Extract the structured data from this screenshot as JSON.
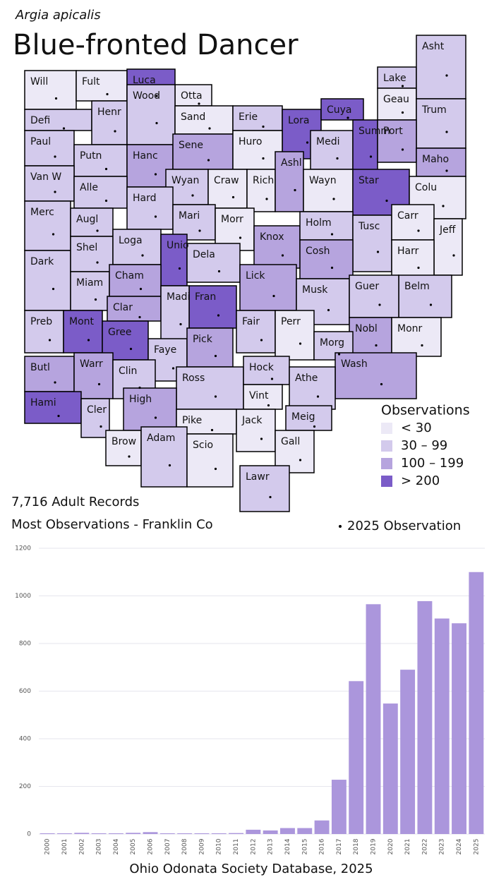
{
  "header": {
    "species": "Argia apicalis",
    "title": "Blue-fronted Dancer"
  },
  "summary": {
    "records": "7,716 Adult Records",
    "most": "Most Observations - Franklin Co",
    "dot_legend": "2025 Observation"
  },
  "map": {
    "legend": {
      "title": "Observations",
      "items": [
        {
          "label": "< 30",
          "color": "#ece9f6"
        },
        {
          "label": "30 – 99",
          "color": "#d3caec"
        },
        {
          "label": "100 – 199",
          "color": "#b6a4de"
        },
        {
          "label": "> 200",
          "color": "#7b5cc8"
        }
      ]
    },
    "counties": [
      {
        "name": "Will",
        "level": 0
      },
      {
        "name": "Fult",
        "level": 0
      },
      {
        "name": "Luca",
        "level": 3
      },
      {
        "name": "Otta",
        "level": 0
      },
      {
        "name": "Defi",
        "level": 1
      },
      {
        "name": "Henr",
        "level": 1
      },
      {
        "name": "Wood",
        "level": 1
      },
      {
        "name": "Sand",
        "level": 0
      },
      {
        "name": "Erie",
        "level": 1
      },
      {
        "name": "Lora",
        "level": 3
      },
      {
        "name": "Cuya",
        "level": 3
      },
      {
        "name": "Lake",
        "level": 1
      },
      {
        "name": "Geau",
        "level": 0
      },
      {
        "name": "Asht",
        "level": 1
      },
      {
        "name": "Trum",
        "level": 1
      },
      {
        "name": "Paul",
        "level": 1
      },
      {
        "name": "Putn",
        "level": 1
      },
      {
        "name": "Hanc",
        "level": 2
      },
      {
        "name": "Sene",
        "level": 2
      },
      {
        "name": "Huro",
        "level": 0
      },
      {
        "name": "Medi",
        "level": 1
      },
      {
        "name": "Summ",
        "level": 3
      },
      {
        "name": "Port",
        "level": 2
      },
      {
        "name": "Maho",
        "level": 2
      },
      {
        "name": "Van W",
        "level": 1
      },
      {
        "name": "Alle",
        "level": 1
      },
      {
        "name": "Wyan",
        "level": 1
      },
      {
        "name": "Craw",
        "level": 0
      },
      {
        "name": "Rich",
        "level": 0
      },
      {
        "name": "Ashl",
        "level": 2
      },
      {
        "name": "Wayn",
        "level": 0
      },
      {
        "name": "Star",
        "level": 3
      },
      {
        "name": "Colu",
        "level": 0
      },
      {
        "name": "Merc",
        "level": 1
      },
      {
        "name": "Augl",
        "level": 1
      },
      {
        "name": "Hard",
        "level": 1
      },
      {
        "name": "Mari",
        "level": 1
      },
      {
        "name": "Morr",
        "level": 0
      },
      {
        "name": "Knox",
        "level": 2
      },
      {
        "name": "Holm",
        "level": 1
      },
      {
        "name": "Tusc",
        "level": 1
      },
      {
        "name": "Carr",
        "level": 0
      },
      {
        "name": "Jeff",
        "level": 0
      },
      {
        "name": "Harr",
        "level": 0
      },
      {
        "name": "Dark",
        "level": 1
      },
      {
        "name": "Shel",
        "level": 1
      },
      {
        "name": "Loga",
        "level": 1
      },
      {
        "name": "Unio",
        "level": 3
      },
      {
        "name": "Dela",
        "level": 1
      },
      {
        "name": "Cosh",
        "level": 2
      },
      {
        "name": "Belm",
        "level": 1
      },
      {
        "name": "Miam",
        "level": 1
      },
      {
        "name": "Cham",
        "level": 2
      },
      {
        "name": "Lick",
        "level": 2
      },
      {
        "name": "Musk",
        "level": 1
      },
      {
        "name": "Guer",
        "level": 1
      },
      {
        "name": "Clar",
        "level": 2
      },
      {
        "name": "Fran",
        "level": 3
      },
      {
        "name": "Madi",
        "level": 1
      },
      {
        "name": "Fair",
        "level": 1
      },
      {
        "name": "Perr",
        "level": 0
      },
      {
        "name": "Nobl",
        "level": 2
      },
      {
        "name": "Monr",
        "level": 0
      },
      {
        "name": "Preb",
        "level": 1
      },
      {
        "name": "Mont",
        "level": 3
      },
      {
        "name": "Gree",
        "level": 3
      },
      {
        "name": "Faye",
        "level": 1
      },
      {
        "name": "Pick",
        "level": 2
      },
      {
        "name": "Morg",
        "level": 1
      },
      {
        "name": "Wash",
        "level": 2
      },
      {
        "name": "Butl",
        "level": 2
      },
      {
        "name": "Warr",
        "level": 2
      },
      {
        "name": "Clin",
        "level": 1
      },
      {
        "name": "Ross",
        "level": 1
      },
      {
        "name": "Hock",
        "level": 1
      },
      {
        "name": "Athe",
        "level": 1
      },
      {
        "name": "Hami",
        "level": 3
      },
      {
        "name": "Cler",
        "level": 1
      },
      {
        "name": "High",
        "level": 2
      },
      {
        "name": "Vint",
        "level": 0
      },
      {
        "name": "Brow",
        "level": 0
      },
      {
        "name": "Pike",
        "level": 0
      },
      {
        "name": "Jack",
        "level": 0
      },
      {
        "name": "Meig",
        "level": 1
      },
      {
        "name": "Adam",
        "level": 1
      },
      {
        "name": "Scio",
        "level": 0
      },
      {
        "name": "Gall",
        "level": 0
      },
      {
        "name": "Lawr",
        "level": 1
      }
    ]
  },
  "chart_data": {
    "type": "bar",
    "categories": [
      "2000",
      "2001",
      "2002",
      "2003",
      "2004",
      "2005",
      "2006",
      "2007",
      "2008",
      "2009",
      "2010",
      "2011",
      "2012",
      "2013",
      "2014",
      "2015",
      "2016",
      "2017",
      "2018",
      "2019",
      "2020",
      "2021",
      "2022",
      "2023",
      "2024",
      "2025"
    ],
    "values": [
      3,
      3,
      5,
      3,
      3,
      5,
      8,
      3,
      3,
      3,
      3,
      4,
      18,
      15,
      25,
      25,
      57,
      228,
      642,
      965,
      548,
      690,
      978,
      905,
      885,
      1100
    ],
    "color": "#ab96dc",
    "ylim": [
      0,
      1200
    ],
    "yticks": [
      0,
      200,
      400,
      600,
      800,
      1000,
      1200
    ],
    "grid": true
  },
  "footer": "Ohio Odonata Society Database, 2025"
}
